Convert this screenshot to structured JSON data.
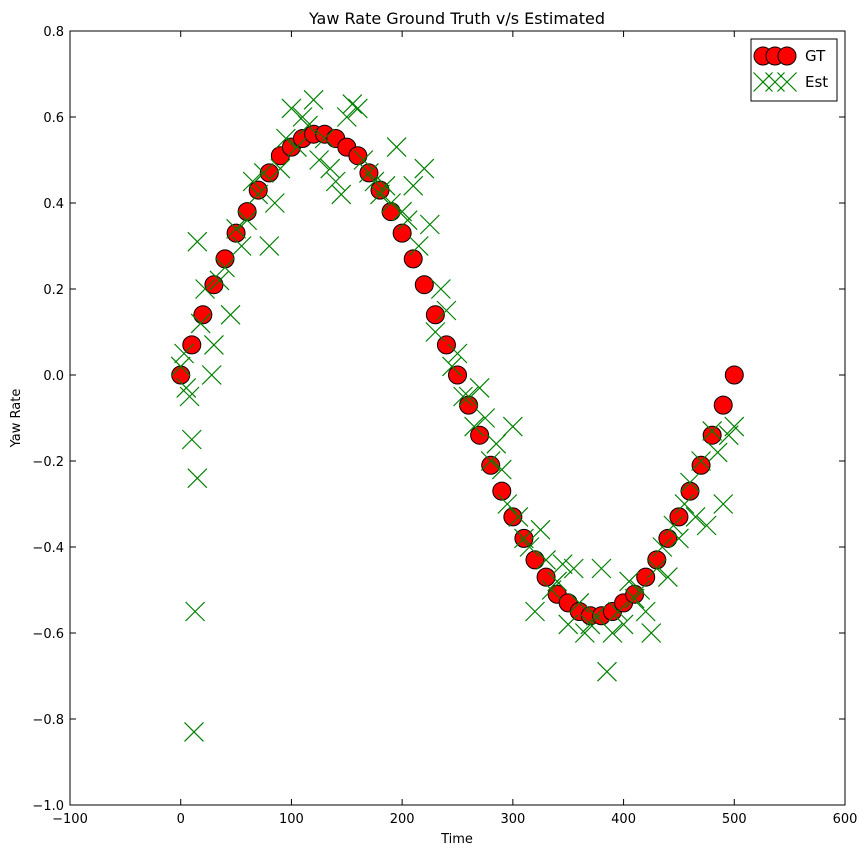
{
  "chart_data": {
    "type": "scatter",
    "title": "Yaw Rate Ground Truth v/s Estimated",
    "x_label": "Time",
    "y_label": "Yaw Rate",
    "xlim": [
      -100,
      600
    ],
    "ylim": [
      -1.0,
      0.8
    ],
    "xticks": [
      {
        "value": -100,
        "label": "−100"
      },
      0,
      100,
      200,
      300,
      400,
      500,
      600
    ],
    "yticks": [
      {
        "value": -1.0,
        "label": "−1.0"
      },
      {
        "value": -0.8,
        "label": "−0.8"
      },
      {
        "value": -0.6,
        "label": "−0.6"
      },
      {
        "value": -0.4,
        "label": "−0.4"
      },
      {
        "value": -0.2,
        "label": "−0.2"
      },
      {
        "value": 0,
        "label": "0.0"
      },
      0.2,
      0.4,
      0.6,
      0.8
    ],
    "legend": "upper right",
    "grid": false,
    "series": [
      {
        "name": "GT",
        "color": "#ff0000",
        "marker": "circle",
        "x": [
          0,
          10,
          20,
          30,
          40,
          50,
          60,
          70,
          80,
          90,
          100,
          110,
          120,
          130,
          140,
          150,
          160,
          170,
          180,
          190,
          200,
          210,
          220,
          230,
          240,
          250,
          260,
          270,
          280,
          290,
          300,
          310,
          320,
          330,
          340,
          350,
          360,
          370,
          380,
          390,
          400,
          410,
          420,
          430,
          440,
          450,
          460,
          470,
          480,
          490,
          500
        ],
        "values": [
          0,
          0.07,
          0.14,
          0.21,
          0.27,
          0.33,
          0.38,
          0.43,
          0.47,
          0.51,
          0.53,
          0.55,
          0.56,
          0.56,
          0.55,
          0.53,
          0.51,
          0.47,
          0.43,
          0.38,
          0.33,
          0.27,
          0.21,
          0.14,
          0.07,
          0,
          -0.07,
          -0.14,
          -0.21,
          -0.27,
          -0.33,
          -0.38,
          -0.43,
          -0.47,
          -0.51,
          -0.53,
          -0.55,
          -0.56,
          -0.56,
          -0.55,
          -0.53,
          -0.51,
          -0.47,
          -0.43,
          -0.38,
          -0.33,
          -0.27,
          -0.21,
          -0.14,
          -0.07,
          0
        ]
      },
      {
        "name": "Est",
        "color": "#008000",
        "marker": "x",
        "x": [
          0,
          3,
          5,
          8,
          10,
          12,
          13,
          15,
          15,
          18,
          22,
          28,
          30,
          35,
          40,
          45,
          50,
          55,
          60,
          65,
          70,
          75,
          80,
          85,
          90,
          95,
          100,
          105,
          110,
          115,
          120,
          125,
          130,
          135,
          140,
          145,
          150,
          155,
          160,
          165,
          170,
          175,
          180,
          185,
          190,
          195,
          200,
          205,
          210,
          215,
          220,
          225,
          230,
          235,
          240,
          245,
          250,
          255,
          260,
          265,
          270,
          275,
          280,
          285,
          290,
          295,
          300,
          305,
          310,
          315,
          320,
          325,
          330,
          335,
          340,
          345,
          350,
          355,
          360,
          365,
          370,
          375,
          380,
          385,
          390,
          395,
          400,
          405,
          410,
          415,
          420,
          425,
          430,
          435,
          440,
          445,
          450,
          455,
          460,
          465,
          470,
          475,
          480,
          485,
          490,
          495,
          500
        ],
        "values": [
          0.02,
          0.05,
          -0.03,
          -0.05,
          -0.15,
          -0.83,
          -0.55,
          -0.24,
          0.31,
          0.12,
          0.2,
          0.0,
          0.07,
          0.22,
          0.25,
          0.14,
          0.34,
          0.3,
          0.36,
          0.45,
          0.42,
          0.47,
          0.3,
          0.4,
          0.48,
          0.55,
          0.62,
          0.53,
          0.6,
          0.58,
          0.64,
          0.5,
          0.55,
          0.48,
          0.45,
          0.42,
          0.6,
          0.63,
          0.62,
          0.5,
          0.47,
          0.45,
          0.42,
          0.44,
          0.4,
          0.53,
          0.38,
          0.36,
          0.44,
          0.3,
          0.48,
          0.35,
          0.1,
          0.2,
          0.15,
          0.02,
          0.05,
          -0.05,
          -0.05,
          -0.12,
          -0.03,
          -0.1,
          -0.2,
          -0.16,
          -0.22,
          -0.3,
          -0.12,
          -0.33,
          -0.38,
          -0.4,
          -0.55,
          -0.36,
          -0.43,
          -0.5,
          -0.48,
          -0.44,
          -0.58,
          -0.45,
          -0.53,
          -0.6,
          -0.58,
          -0.56,
          -0.45,
          -0.69,
          -0.6,
          -0.55,
          -0.58,
          -0.48,
          -0.52,
          -0.5,
          -0.55,
          -0.6,
          -0.45,
          -0.4,
          -0.47,
          -0.35,
          -0.38,
          -0.3,
          -0.25,
          -0.33,
          -0.2,
          -0.35,
          -0.13,
          -0.18,
          -0.3,
          -0.14,
          -0.12
        ]
      }
    ]
  }
}
